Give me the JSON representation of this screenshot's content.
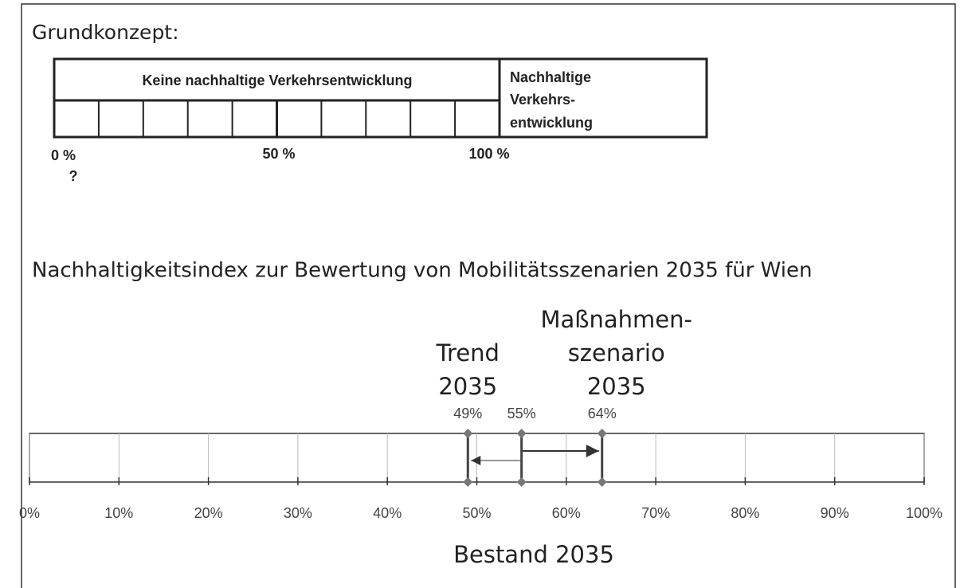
{
  "concept": {
    "title": "Grundkonzept:",
    "left_label": "Keine nachhaltige Verkehrsentwicklung",
    "right_label": [
      "Nachhaltige",
      "Verkehrs-",
      "entwicklung"
    ],
    "scale_labels": [
      "0 %",
      "50 %",
      "100 %"
    ],
    "question": "?"
  },
  "index": {
    "title": "Nachhaltigkeitsindex zur Bewertung von Mobilitätsszenarien 2035 für Wien",
    "xlim": [
      0,
      100
    ],
    "xticks": [
      {
        "value": 0,
        "label": "0%"
      },
      {
        "value": 10,
        "label": "10%"
      },
      {
        "value": 20,
        "label": "20%"
      },
      {
        "value": 30,
        "label": "30%"
      },
      {
        "value": 40,
        "label": "40%"
      },
      {
        "value": 50,
        "label": "50%"
      },
      {
        "value": 60,
        "label": "60%"
      },
      {
        "value": 70,
        "label": "70%"
      },
      {
        "value": 80,
        "label": "80%"
      },
      {
        "value": 90,
        "label": "90%"
      },
      {
        "value": 100,
        "label": "100%"
      }
    ],
    "markers": [
      {
        "name": [
          "Trend",
          "2035"
        ],
        "value": 49,
        "value_label": "49%"
      },
      {
        "name": [
          "Bestand 2035"
        ],
        "value": 55,
        "value_label": "55%"
      },
      {
        "name": [
          "Maßnahmen-",
          "szenario",
          "2035"
        ],
        "value": 64,
        "value_label": "64%"
      }
    ]
  }
}
